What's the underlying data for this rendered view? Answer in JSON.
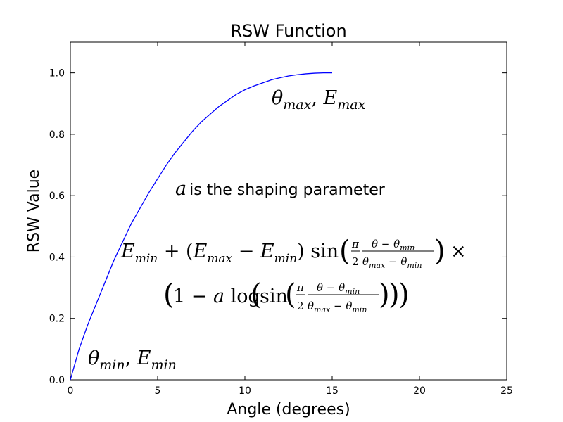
{
  "chart_data": {
    "type": "line",
    "title": "RSW Function",
    "xlabel": "Angle (degrees)",
    "ylabel": "RSW Value",
    "xlim": [
      0,
      25
    ],
    "ylim": [
      0,
      1.1
    ],
    "xticks": [
      0,
      5,
      10,
      15,
      20,
      25
    ],
    "yticks": [
      0.0,
      0.2,
      0.4,
      0.6,
      0.8,
      1.0
    ],
    "xtick_labels": [
      "0",
      "5",
      "10",
      "15",
      "20",
      "25"
    ],
    "ytick_labels": [
      "0.0",
      "0.2",
      "0.4",
      "0.6",
      "0.8",
      "1.0"
    ],
    "grid": false,
    "series": [
      {
        "color": "#0000ff",
        "x": [
          0,
          0.5,
          1,
          1.5,
          2,
          2.5,
          3,
          3.5,
          4,
          4.5,
          5,
          5.5,
          6,
          6.5,
          7,
          7.5,
          8,
          8.5,
          9,
          9.5,
          10,
          10.5,
          11,
          11.5,
          12,
          12.5,
          13,
          13.5,
          14,
          14.5,
          15
        ],
        "y": [
          0.0,
          0.1,
          0.18,
          0.25,
          0.32,
          0.39,
          0.45,
          0.51,
          0.56,
          0.61,
          0.655,
          0.7,
          0.74,
          0.775,
          0.81,
          0.84,
          0.865,
          0.89,
          0.91,
          0.93,
          0.945,
          0.957,
          0.967,
          0.977,
          0.984,
          0.99,
          0.994,
          0.997,
          0.999,
          1.0,
          1.0
        ]
      }
    ],
    "annotations": {
      "max_sym_base": "θ",
      "max_sym_sub": "max",
      "max_E_base": "E",
      "max_E_sub": "max",
      "min_sym_base": "θ",
      "min_sym_sub": "min",
      "min_E_base": "E",
      "min_E_sub": "min",
      "shaping_var": "a",
      "shaping_text": "is the shaping parameter"
    }
  }
}
